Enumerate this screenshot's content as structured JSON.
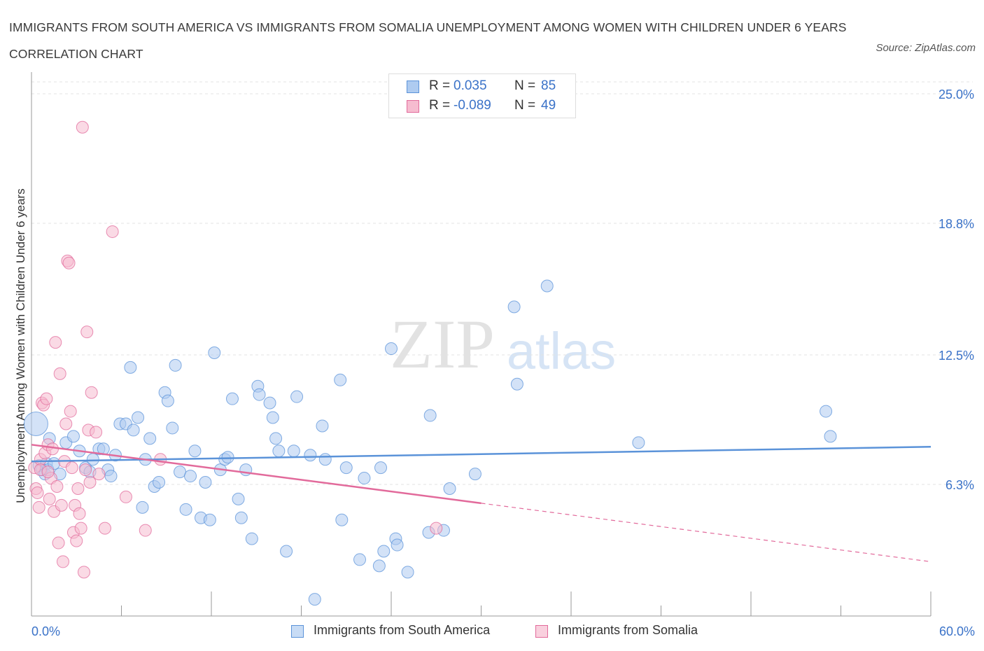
{
  "title": "IMMIGRANTS FROM SOUTH AMERICA VS IMMIGRANTS FROM SOMALIA UNEMPLOYMENT AMONG WOMEN WITH CHILDREN UNDER 6 YEARS CORRELATION CHART",
  "source": "Source: ZipAtlas.com",
  "watermark": {
    "zip": "ZIP",
    "atlas": "atlas"
  },
  "colors": {
    "blue": "#5b93d9",
    "blue_fill": "#aecbf0",
    "pink": "#e26a9b",
    "pink_fill": "#f6bcd0",
    "accent_text": "#3a72c8"
  },
  "legend": {
    "rows": [
      {
        "r_label": "R =",
        "r_value": "0.035",
        "n_label": "N =",
        "n_value": "85"
      },
      {
        "r_label": "R =",
        "r_value": "-0.089",
        "n_label": "N =",
        "n_value": "49"
      }
    ]
  },
  "chart_data": {
    "type": "scatter",
    "xlabel": "",
    "ylabel": "Unemployment Among Women with Children Under 6 years",
    "xlim": [
      0,
      60
    ],
    "ylim": [
      0,
      25
    ],
    "x_tick_labels": [
      "0.0%",
      "60.0%"
    ],
    "y_tick_labels": [
      "6.3%",
      "12.5%",
      "18.8%",
      "25.0%"
    ],
    "y_ticks": [
      6.3,
      12.5,
      18.8,
      25.0
    ],
    "grid": true,
    "legend_position": "top-center",
    "series": [
      {
        "name": "Immigrants from South America",
        "color": "#5b93d9",
        "trend": {
          "x": [
            0,
            60
          ],
          "y": [
            7.4,
            8.1
          ],
          "dashed_from": null
        },
        "points": [
          [
            0.3,
            9.2
          ],
          [
            0.5,
            7.2
          ],
          [
            0.7,
            7.0
          ],
          [
            0.9,
            6.8
          ],
          [
            1.0,
            7.3
          ],
          [
            1.1,
            7.0
          ],
          [
            1.2,
            8.5
          ],
          [
            1.5,
            7.3
          ],
          [
            1.9,
            6.8
          ],
          [
            2.3,
            8.3
          ],
          [
            2.8,
            8.6
          ],
          [
            3.2,
            7.9
          ],
          [
            3.6,
            7.1
          ],
          [
            3.9,
            6.9
          ],
          [
            4.1,
            7.5
          ],
          [
            4.5,
            8.0
          ],
          [
            4.8,
            8.0
          ],
          [
            5.1,
            7.0
          ],
          [
            5.3,
            6.7
          ],
          [
            5.6,
            7.7
          ],
          [
            5.9,
            9.2
          ],
          [
            6.3,
            9.2
          ],
          [
            6.6,
            11.9
          ],
          [
            6.8,
            8.9
          ],
          [
            7.1,
            9.5
          ],
          [
            7.4,
            5.2
          ],
          [
            7.6,
            7.5
          ],
          [
            7.9,
            8.5
          ],
          [
            8.2,
            6.2
          ],
          [
            8.5,
            6.4
          ],
          [
            8.9,
            10.7
          ],
          [
            9.1,
            10.3
          ],
          [
            9.4,
            9.0
          ],
          [
            9.6,
            12.0
          ],
          [
            9.9,
            6.9
          ],
          [
            10.3,
            5.1
          ],
          [
            10.6,
            6.7
          ],
          [
            10.9,
            7.9
          ],
          [
            11.3,
            4.7
          ],
          [
            11.6,
            6.4
          ],
          [
            11.9,
            4.6
          ],
          [
            12.2,
            12.6
          ],
          [
            12.6,
            7.0
          ],
          [
            12.9,
            7.5
          ],
          [
            13.1,
            7.6
          ],
          [
            13.4,
            10.4
          ],
          [
            13.8,
            5.6
          ],
          [
            14.0,
            4.7
          ],
          [
            14.3,
            7.0
          ],
          [
            14.7,
            3.7
          ],
          [
            15.1,
            11.0
          ],
          [
            15.2,
            10.6
          ],
          [
            15.9,
            10.2
          ],
          [
            16.1,
            9.5
          ],
          [
            16.3,
            8.5
          ],
          [
            16.5,
            7.9
          ],
          [
            17.0,
            3.1
          ],
          [
            17.5,
            7.9
          ],
          [
            17.7,
            10.5
          ],
          [
            18.6,
            7.7
          ],
          [
            18.9,
            0.8
          ],
          [
            19.4,
            9.1
          ],
          [
            19.6,
            7.5
          ],
          [
            20.6,
            11.3
          ],
          [
            20.7,
            4.6
          ],
          [
            21.0,
            7.1
          ],
          [
            21.9,
            2.7
          ],
          [
            22.2,
            6.6
          ],
          [
            23.2,
            2.4
          ],
          [
            23.3,
            7.1
          ],
          [
            23.5,
            3.1
          ],
          [
            24.0,
            12.8
          ],
          [
            24.3,
            3.7
          ],
          [
            24.4,
            3.4
          ],
          [
            25.1,
            2.1
          ],
          [
            26.5,
            4.0
          ],
          [
            26.6,
            9.6
          ],
          [
            27.5,
            4.1
          ],
          [
            27.9,
            6.1
          ],
          [
            29.6,
            6.8
          ],
          [
            32.2,
            14.8
          ],
          [
            32.4,
            11.1
          ],
          [
            34.4,
            15.8
          ],
          [
            40.5,
            8.3
          ],
          [
            53.0,
            9.8
          ],
          [
            53.3,
            8.6
          ]
        ]
      },
      {
        "name": "Immigrants from Somalia",
        "color": "#e26a9b",
        "trend": {
          "x": [
            0,
            60
          ],
          "y": [
            8.2,
            2.6
          ],
          "dashed_from": 30
        },
        "points": [
          [
            0.2,
            7.1
          ],
          [
            0.3,
            6.1
          ],
          [
            0.4,
            5.9
          ],
          [
            0.5,
            5.2
          ],
          [
            0.6,
            7.5
          ],
          [
            0.7,
            10.2
          ],
          [
            0.8,
            10.1
          ],
          [
            0.9,
            7.8
          ],
          [
            1.0,
            10.4
          ],
          [
            1.1,
            8.2
          ],
          [
            1.2,
            5.6
          ],
          [
            1.3,
            6.6
          ],
          [
            1.4,
            8.0
          ],
          [
            1.5,
            5.0
          ],
          [
            1.6,
            13.1
          ],
          [
            1.7,
            6.2
          ],
          [
            1.8,
            3.5
          ],
          [
            1.9,
            11.6
          ],
          [
            2.0,
            5.3
          ],
          [
            2.1,
            2.6
          ],
          [
            2.2,
            7.4
          ],
          [
            2.3,
            9.2
          ],
          [
            2.4,
            17.0
          ],
          [
            2.5,
            16.9
          ],
          [
            2.6,
            9.8
          ],
          [
            2.7,
            7.1
          ],
          [
            2.8,
            4.0
          ],
          [
            2.9,
            5.3
          ],
          [
            3.0,
            3.6
          ],
          [
            3.1,
            6.1
          ],
          [
            3.2,
            4.9
          ],
          [
            3.3,
            4.2
          ],
          [
            3.4,
            23.4
          ],
          [
            3.5,
            2.1
          ],
          [
            3.6,
            7.0
          ],
          [
            3.7,
            13.6
          ],
          [
            3.8,
            8.9
          ],
          [
            3.9,
            6.4
          ],
          [
            4.0,
            10.7
          ],
          [
            4.3,
            8.8
          ],
          [
            4.5,
            6.8
          ],
          [
            4.9,
            4.2
          ],
          [
            5.4,
            18.4
          ],
          [
            6.3,
            5.7
          ],
          [
            7.6,
            4.1
          ],
          [
            8.6,
            7.5
          ],
          [
            0.6,
            7.0
          ],
          [
            1.1,
            6.9
          ],
          [
            27.0,
            4.2
          ]
        ]
      }
    ]
  },
  "bottom_legend": [
    "Immigrants from South America",
    "Immigrants from Somalia"
  ]
}
